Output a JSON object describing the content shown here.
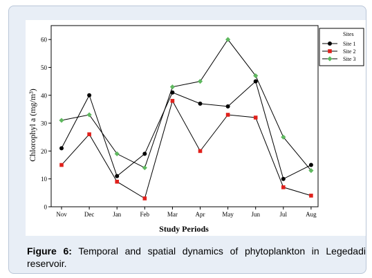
{
  "figure": {
    "caption_label": "Figure 6:",
    "caption_text": "Temporal and spatial dynamics of phytoplankton in Legedadi reservoir."
  },
  "chart_data": {
    "type": "line",
    "xlabel": "Study Periods",
    "ylabel": "Chlorophyl a (mg/m³)",
    "categories": [
      "Nov",
      "Dec",
      "Jan",
      "Feb",
      "Mar",
      "Apr",
      "May",
      "Jun",
      "Jul",
      "Aug"
    ],
    "ylim": [
      0,
      65
    ],
    "yticks": [
      0,
      10,
      20,
      30,
      40,
      50,
      60
    ],
    "grid": false,
    "legend": {
      "title": "Sites",
      "position": "top-right"
    },
    "series": [
      {
        "name": "Site 1",
        "marker": "circle",
        "color": "#000000",
        "values": [
          21,
          40,
          11,
          19,
          41,
          37,
          36,
          45,
          10,
          15
        ]
      },
      {
        "name": "Site 2",
        "marker": "square",
        "color": "#e0211c",
        "values": [
          15,
          26,
          9,
          3,
          38,
          20,
          33,
          32,
          7,
          4
        ]
      },
      {
        "name": "Site 3",
        "marker": "diamond",
        "color": "#5fb85f",
        "values": [
          31,
          33,
          19,
          14,
          43,
          45,
          60,
          47,
          25,
          13
        ]
      }
    ]
  }
}
